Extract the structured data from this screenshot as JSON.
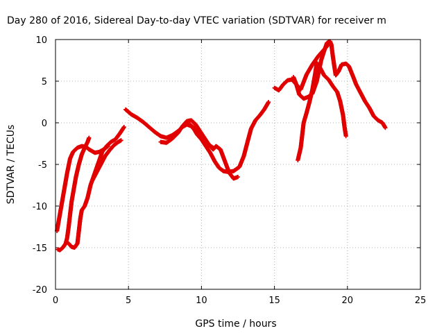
{
  "chart_data": {
    "type": "scatter",
    "title": "Day 280 of 2016, Sidereal Day-to-day VTEC variation (SDTVAR) for receiver m",
    "xlabel": "GPS time / hours",
    "ylabel": "SDTVAR / TECUs",
    "xlim": [
      0,
      25
    ],
    "ylim": [
      -20,
      10
    ],
    "x_ticks": [
      0,
      5,
      10,
      15,
      20,
      25
    ],
    "y_ticks": [
      -20,
      -15,
      -10,
      -5,
      0,
      5,
      10
    ],
    "grid": true,
    "marker": "plus",
    "color": "#e00000",
    "series": [
      {
        "points": [
          [
            0.1,
            -13
          ],
          [
            0.2,
            -12
          ],
          [
            0.4,
            -10
          ],
          [
            0.6,
            -8
          ],
          [
            0.8,
            -6
          ],
          [
            1.0,
            -4.3
          ],
          [
            1.2,
            -3.5
          ],
          [
            1.5,
            -3.0
          ],
          [
            1.8,
            -2.8
          ],
          [
            2.1,
            -2.9
          ],
          [
            2.3,
            -3.2
          ],
          [
            2.5,
            -3.4
          ],
          [
            2.7,
            -3.6
          ],
          [
            3.0,
            -3.5
          ],
          [
            3.3,
            -3.2
          ],
          [
            3.6,
            -2.8
          ]
        ]
      },
      {
        "points": [
          [
            0.15,
            -15.2
          ],
          [
            0.3,
            -15.3
          ],
          [
            0.5,
            -15.0
          ],
          [
            0.7,
            -14.5
          ],
          [
            0.8,
            -13.8
          ],
          [
            0.9,
            -12.5
          ],
          [
            1.0,
            -11.0
          ],
          [
            1.1,
            -9.5
          ],
          [
            1.25,
            -8.0
          ],
          [
            1.4,
            -6.5
          ],
          [
            1.6,
            -5.0
          ],
          [
            1.8,
            -3.8
          ],
          [
            2.0,
            -3.0
          ],
          [
            2.2,
            -2.3
          ],
          [
            2.3,
            -1.8
          ]
        ]
      },
      {
        "points": [
          [
            0.9,
            -14.5
          ],
          [
            1.1,
            -14.9
          ],
          [
            1.3,
            -15.0
          ],
          [
            1.5,
            -14.5
          ],
          [
            1.6,
            -13.0
          ],
          [
            1.7,
            -11.5
          ],
          [
            1.8,
            -10.5
          ],
          [
            2.0,
            -10.0
          ],
          [
            2.2,
            -9.0
          ],
          [
            2.4,
            -7.5
          ],
          [
            2.6,
            -6.5
          ],
          [
            2.8,
            -5.5
          ],
          [
            3.0,
            -4.5
          ],
          [
            3.2,
            -3.5
          ],
          [
            3.5,
            -2.8
          ],
          [
            3.8,
            -2.3
          ],
          [
            4.1,
            -2.0
          ],
          [
            4.4,
            -1.3
          ],
          [
            4.7,
            -0.5
          ]
        ]
      },
      {
        "points": [
          [
            2.5,
            -7.0
          ],
          [
            2.8,
            -6.0
          ],
          [
            3.1,
            -5.0
          ],
          [
            3.4,
            -4.0
          ],
          [
            3.7,
            -3.3
          ],
          [
            4.0,
            -2.7
          ],
          [
            4.3,
            -2.3
          ],
          [
            4.5,
            -2.1
          ]
        ]
      },
      {
        "points": [
          [
            4.8,
            1.6
          ],
          [
            5.2,
            1.0
          ],
          [
            5.6,
            0.6
          ],
          [
            6.0,
            0.1
          ],
          [
            6.4,
            -0.5
          ],
          [
            6.8,
            -1.1
          ],
          [
            7.2,
            -1.6
          ],
          [
            7.6,
            -1.8
          ],
          [
            8.0,
            -1.5
          ],
          [
            8.4,
            -1.0
          ],
          [
            8.7,
            -0.5
          ],
          [
            9.0,
            -0.2
          ],
          [
            9.3,
            -0.4
          ],
          [
            9.5,
            -0.8
          ],
          [
            9.7,
            -1.4
          ],
          [
            10.0,
            -2.0
          ],
          [
            10.3,
            -2.8
          ],
          [
            10.6,
            -3.6
          ],
          [
            10.9,
            -4.6
          ],
          [
            11.2,
            -5.4
          ],
          [
            11.5,
            -5.8
          ],
          [
            11.8,
            -5.9
          ],
          [
            12.2,
            -5.8
          ],
          [
            12.6,
            -5.3
          ],
          [
            12.9,
            -4.0
          ],
          [
            13.2,
            -2.0
          ],
          [
            13.4,
            -0.7
          ],
          [
            13.7,
            0.3
          ],
          [
            14.0,
            0.9
          ],
          [
            14.3,
            1.6
          ],
          [
            14.6,
            2.5
          ]
        ]
      },
      {
        "points": [
          [
            7.2,
            -2.3
          ],
          [
            7.6,
            -2.4
          ],
          [
            8.0,
            -1.9
          ],
          [
            8.4,
            -1.2
          ],
          [
            8.7,
            -0.4
          ],
          [
            9.0,
            0.2
          ],
          [
            9.3,
            0.3
          ],
          [
            9.6,
            -0.2
          ],
          [
            9.9,
            -1.0
          ],
          [
            10.2,
            -1.8
          ],
          [
            10.5,
            -2.6
          ],
          [
            10.8,
            -3.2
          ],
          [
            11.0,
            -2.8
          ],
          [
            11.3,
            -3.2
          ],
          [
            11.6,
            -4.6
          ],
          [
            11.9,
            -6.0
          ],
          [
            12.2,
            -6.7
          ],
          [
            12.5,
            -6.5
          ]
        ]
      },
      {
        "points": [
          [
            9.2,
            -0.2
          ],
          [
            9.6,
            -0.8
          ],
          [
            10.0,
            -1.6
          ],
          [
            10.4,
            -2.5
          ],
          [
            10.8,
            -3.0
          ]
        ]
      },
      {
        "points": [
          [
            15.0,
            4.2
          ],
          [
            15.3,
            3.9
          ],
          [
            15.6,
            4.6
          ],
          [
            15.9,
            5.1
          ],
          [
            16.2,
            5.2
          ],
          [
            16.5,
            4.6
          ],
          [
            16.7,
            3.4
          ],
          [
            17.0,
            2.9
          ],
          [
            17.3,
            3.1
          ],
          [
            17.6,
            3.5
          ],
          [
            17.9,
            5.0
          ],
          [
            18.2,
            7.5
          ],
          [
            18.4,
            8.6
          ],
          [
            18.6,
            9.6
          ],
          [
            18.8,
            9.8
          ],
          [
            18.9,
            9.4
          ],
          [
            19.0,
            8.0
          ],
          [
            19.1,
            6.8
          ],
          [
            19.2,
            5.7
          ],
          [
            19.4,
            6.2
          ],
          [
            19.6,
            7.0
          ],
          [
            19.9,
            7.1
          ],
          [
            20.1,
            6.8
          ],
          [
            20.4,
            5.5
          ],
          [
            20.6,
            4.6
          ],
          [
            20.9,
            3.6
          ],
          [
            21.2,
            2.6
          ],
          [
            21.5,
            1.8
          ],
          [
            21.8,
            0.8
          ],
          [
            22.1,
            0.3
          ],
          [
            22.4,
            0.0
          ],
          [
            22.6,
            -0.6
          ]
        ]
      },
      {
        "points": [
          [
            16.6,
            -4.5
          ],
          [
            16.8,
            -3.0
          ],
          [
            16.9,
            -1.5
          ],
          [
            17.0,
            0.0
          ],
          [
            17.2,
            1.2
          ],
          [
            17.4,
            2.5
          ],
          [
            17.6,
            4.0
          ],
          [
            17.8,
            6.0
          ],
          [
            17.9,
            7.2
          ],
          [
            18.1,
            6.7
          ],
          [
            18.4,
            5.7
          ],
          [
            18.7,
            5.2
          ],
          [
            19.0,
            4.4
          ],
          [
            19.3,
            3.7
          ],
          [
            19.5,
            2.6
          ],
          [
            19.7,
            0.9
          ],
          [
            19.8,
            -0.5
          ],
          [
            19.9,
            -1.6
          ]
        ]
      },
      {
        "points": [
          [
            16.3,
            5.5
          ],
          [
            16.5,
            4.6
          ],
          [
            16.8,
            4.0
          ],
          [
            17.2,
            5.8
          ],
          [
            17.6,
            7.0
          ],
          [
            18.0,
            8.0
          ],
          [
            18.4,
            8.8
          ],
          [
            18.7,
            9.4
          ]
        ]
      }
    ]
  }
}
